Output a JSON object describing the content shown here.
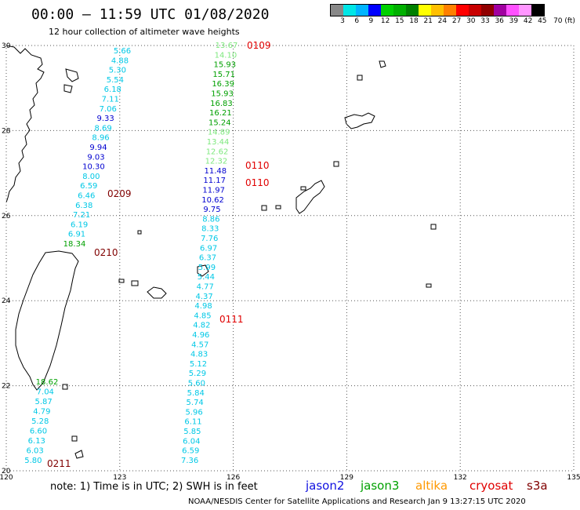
{
  "header": {
    "title": "00:00 – 11:59 UTC 01/08/2020",
    "subtitle": "12 hour collection of altimeter wave heights"
  },
  "colorbar": {
    "labels": [
      "3",
      "6",
      "9",
      "12",
      "15",
      "18",
      "21",
      "24",
      "27",
      "30",
      "33",
      "36",
      "39",
      "42",
      "45",
      "70 (ft)"
    ],
    "colors": [
      "#888888",
      "#00e6e6",
      "#00b4ff",
      "#0000ff",
      "#00d000",
      "#00b000",
      "#008000",
      "#ffff00",
      "#ffbf00",
      "#ff8000",
      "#ff0000",
      "#c80000",
      "#900000",
      "#a000a0",
      "#ff50ff",
      "#ff96ff",
      "#000000"
    ]
  },
  "map": {
    "lon_ticks": [
      "120",
      "123",
      "126",
      "129",
      "132",
      "135"
    ],
    "lat_ticks": [
      "30",
      "28",
      "26",
      "24",
      "22",
      "20"
    ],
    "track_times": [
      {
        "label": "0109",
        "color": "#e00000"
      },
      {
        "label": "0110",
        "color": "#e00000"
      },
      {
        "label": "0110",
        "color": "#e00000"
      },
      {
        "label": "0111",
        "color": "#e00000"
      },
      {
        "label": "0209",
        "color": "#800000"
      },
      {
        "label": "0210",
        "color": "#800000"
      },
      {
        "label": "0211",
        "color": "#800000"
      }
    ],
    "west_track_swh": [
      "5.66",
      "4.88",
      "5.30",
      "5.54",
      "6.18",
      "7.11",
      "7.06",
      "9.33",
      "8.69",
      "8.96",
      "9.94",
      "9.03",
      "10.30",
      "8.00",
      "6.59",
      "6.46",
      "6.38",
      "7.21",
      "6.19",
      "6.91",
      "18.34"
    ],
    "west_track_colors": [
      "c",
      "c",
      "c",
      "c",
      "c",
      "c",
      "c",
      "b",
      "c",
      "c",
      "b",
      "b",
      "b",
      "c",
      "c",
      "c",
      "c",
      "c",
      "c",
      "c",
      "g"
    ],
    "south_track_swh": [
      "18.62",
      "7.04",
      "5.87",
      "4.79",
      "5.28",
      "6.60",
      "6.13",
      "6.03",
      "5.80"
    ],
    "south_track_colors": [
      "g",
      "c",
      "c",
      "c",
      "c",
      "c",
      "c",
      "c",
      "c"
    ],
    "east_track_swh": [
      "13.67",
      "14.10",
      "15.93",
      "15.71",
      "16.39",
      "15.93",
      "16.83",
      "16.21",
      "15.24",
      "14.89",
      "13.44",
      "12.62",
      "12.32",
      "11.48",
      "11.17",
      "11.97",
      "10.62",
      "9.75",
      "8.86",
      "8.33",
      "7.76",
      "6.97",
      "6.37",
      "5.99",
      "5.44",
      "4.77",
      "4.37",
      "4.98",
      "4.85",
      "4.82",
      "4.96",
      "4.57",
      "4.83",
      "5.12",
      "5.29",
      "5.60",
      "5.84",
      "5.74",
      "5.96",
      "6.11",
      "5.85",
      "6.04",
      "6.59",
      "7.36"
    ],
    "east_track_colors": [
      "lg",
      "lg",
      "g",
      "g",
      "g",
      "g",
      "g",
      "g",
      "g",
      "lg",
      "lg",
      "lg",
      "lg",
      "b",
      "b",
      "b",
      "b",
      "b",
      "c",
      "c",
      "c",
      "c",
      "c",
      "c",
      "c",
      "c",
      "c",
      "c",
      "c",
      "c",
      "c",
      "c",
      "c",
      "c",
      "c",
      "c",
      "c",
      "c",
      "c",
      "c",
      "c",
      "c",
      "c",
      "c"
    ]
  },
  "footer": {
    "note": "note:  1) Time is in UTC;  2) SWH is in feet",
    "satellites": [
      {
        "name": "jason2",
        "color": "#1010e0"
      },
      {
        "name": "jason3",
        "color": "#00a000"
      },
      {
        "name": "altika",
        "color": "#ff9900"
      },
      {
        "name": "cryosat",
        "color": "#e00000"
      },
      {
        "name": "s3a",
        "color": "#800000"
      }
    ],
    "credit": "NOAA/NESDIS Center for Satellite Applications and Research    Jan  9 13:27:15 UTC 2020"
  }
}
